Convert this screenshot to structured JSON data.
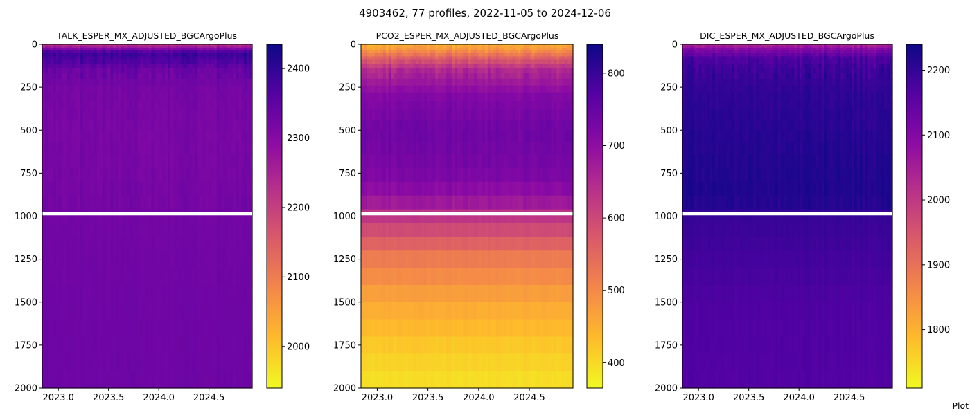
{
  "figure": {
    "suptitle": "4903462, 77 profiles, 2022-11-05 to 2024-12-06",
    "footnote": "Plot"
  },
  "chart_data": [
    {
      "type": "heatmap",
      "title": "TALK_ESPER_MX_ADJUSTED_BGCArgoPlus",
      "xlabel": "",
      "ylabel": "",
      "xlim": [
        2022.84,
        2024.93
      ],
      "ylim": [
        2000,
        0
      ],
      "y_inverted": true,
      "xticks": [
        2023.0,
        2023.5,
        2024.0,
        2024.5
      ],
      "xtick_labels": [
        "2023.0",
        "2023.5",
        "2024.0",
        "2024.5"
      ],
      "yticks": [
        0,
        250,
        500,
        750,
        1000,
        1250,
        1500,
        1750,
        2000
      ],
      "ytick_labels": [
        "0",
        "250",
        "500",
        "750",
        "1000",
        "1250",
        "1500",
        "1750",
        "2000"
      ],
      "colormap": "plasma_r",
      "colorbar": {
        "range": [
          1940,
          2435
        ],
        "ticks": [
          2000,
          2100,
          2200,
          2300,
          2400
        ],
        "tick_labels": [
          "2000",
          "2100",
          "2200",
          "2300",
          "2400"
        ]
      },
      "depth_profile": [
        {
          "depth": 0,
          "value": 2215
        },
        {
          "depth": 20,
          "value": 2280
        },
        {
          "depth": 50,
          "value": 2390
        },
        {
          "depth": 100,
          "value": 2370
        },
        {
          "depth": 150,
          "value": 2340
        },
        {
          "depth": 250,
          "value": 2322
        },
        {
          "depth": 500,
          "value": 2318
        },
        {
          "depth": 750,
          "value": 2320
        },
        {
          "depth": 1000,
          "value": 2325
        },
        {
          "depth": 1500,
          "value": 2330
        },
        {
          "depth": 2000,
          "value": 2332
        }
      ],
      "grid": false
    },
    {
      "type": "heatmap",
      "title": "PCO2_ESPER_MX_ADJUSTED_BGCArgoPlus",
      "xlabel": "",
      "ylabel": "",
      "xlim": [
        2022.84,
        2024.93
      ],
      "ylim": [
        2000,
        0
      ],
      "y_inverted": true,
      "xticks": [
        2023.0,
        2023.5,
        2024.0,
        2024.5
      ],
      "xtick_labels": [
        "2023.0",
        "2023.5",
        "2024.0",
        "2024.5"
      ],
      "yticks": [
        0,
        250,
        500,
        750,
        1000,
        1250,
        1500,
        1750,
        2000
      ],
      "ytick_labels": [
        "0",
        "250",
        "500",
        "750",
        "1000",
        "1250",
        "1500",
        "1750",
        "2000"
      ],
      "colormap": "plasma_r",
      "colorbar": {
        "range": [
          365,
          840
        ],
        "ticks": [
          400,
          500,
          600,
          700,
          800
        ],
        "tick_labels": [
          "400",
          "500",
          "600",
          "700",
          "800"
        ]
      },
      "depth_profile": [
        {
          "depth": 0,
          "value": 450
        },
        {
          "depth": 30,
          "value": 480
        },
        {
          "depth": 80,
          "value": 560
        },
        {
          "depth": 150,
          "value": 650
        },
        {
          "depth": 300,
          "value": 715
        },
        {
          "depth": 500,
          "value": 740
        },
        {
          "depth": 750,
          "value": 725
        },
        {
          "depth": 900,
          "value": 690
        },
        {
          "depth": 1000,
          "value": 630
        },
        {
          "depth": 1250,
          "value": 520
        },
        {
          "depth": 1500,
          "value": 460
        },
        {
          "depth": 1750,
          "value": 420
        },
        {
          "depth": 2000,
          "value": 390
        }
      ],
      "grid": false
    },
    {
      "type": "heatmap",
      "title": "DIC_ESPER_MX_ADJUSTED_BGCArgoPlus",
      "xlabel": "",
      "ylabel": "",
      "xlim": [
        2022.84,
        2024.93
      ],
      "ylim": [
        2000,
        0
      ],
      "y_inverted": true,
      "xticks": [
        2023.0,
        2023.5,
        2024.0,
        2024.5
      ],
      "xtick_labels": [
        "2023.0",
        "2023.5",
        "2024.0",
        "2024.5"
      ],
      "yticks": [
        0,
        250,
        500,
        750,
        1000,
        1250,
        1500,
        1750,
        2000
      ],
      "ytick_labels": [
        "0",
        "250",
        "500",
        "750",
        "1000",
        "1250",
        "1500",
        "1750",
        "2000"
      ],
      "colormap": "plasma_r",
      "colorbar": {
        "range": [
          1710,
          2240
        ],
        "ticks": [
          1800,
          1900,
          2000,
          2100,
          2200
        ],
        "tick_labels": [
          "1800",
          "1900",
          "2000",
          "2100",
          "2200"
        ]
      },
      "depth_profile": [
        {
          "depth": 0,
          "value": 2030
        },
        {
          "depth": 30,
          "value": 2100
        },
        {
          "depth": 80,
          "value": 2170
        },
        {
          "depth": 150,
          "value": 2190
        },
        {
          "depth": 300,
          "value": 2205
        },
        {
          "depth": 600,
          "value": 2215
        },
        {
          "depth": 900,
          "value": 2222
        },
        {
          "depth": 1000,
          "value": 2195
        },
        {
          "depth": 1500,
          "value": 2170
        },
        {
          "depth": 2000,
          "value": 2165
        }
      ],
      "grid": false
    }
  ]
}
